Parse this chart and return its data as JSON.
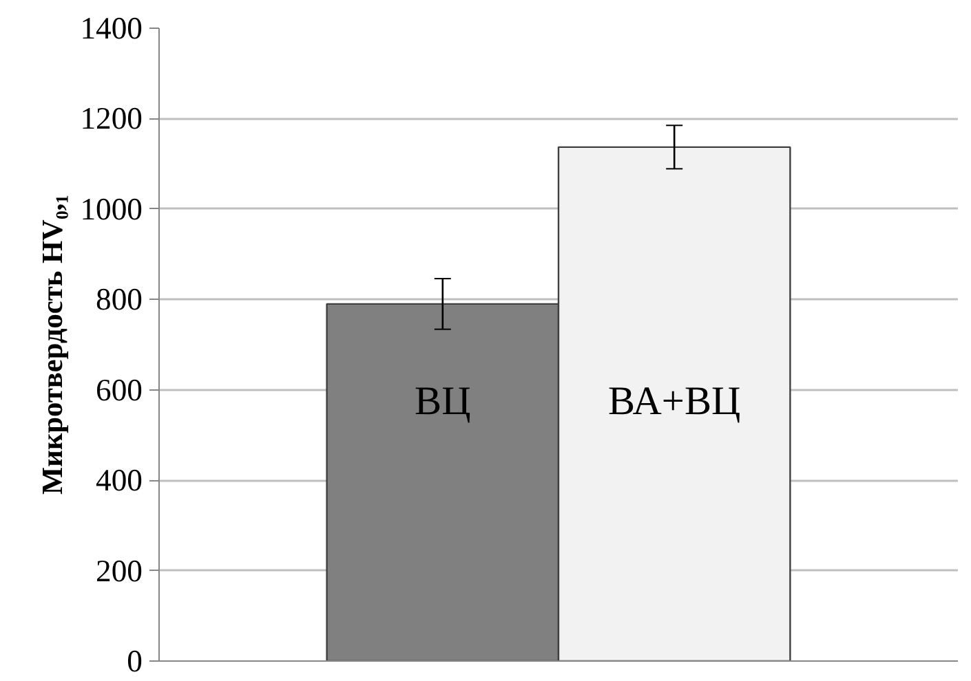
{
  "chart_data": {
    "type": "bar",
    "ylabel": "Микротвердость HV₀,₁",
    "categories": [
      null
    ],
    "series": [
      {
        "name": "ВЦ",
        "color": "#808080",
        "values": [
          790
        ],
        "errors": [
          56
        ]
      },
      {
        "name": "ВА+ВЦ",
        "color": "#f2f2f2",
        "values": [
          1137
        ],
        "errors": [
          48
        ]
      }
    ],
    "ylim": [
      0,
      1400
    ],
    "yticks": [
      0,
      200,
      400,
      600,
      800,
      1000,
      1200,
      1400
    ],
    "grid": "y"
  }
}
